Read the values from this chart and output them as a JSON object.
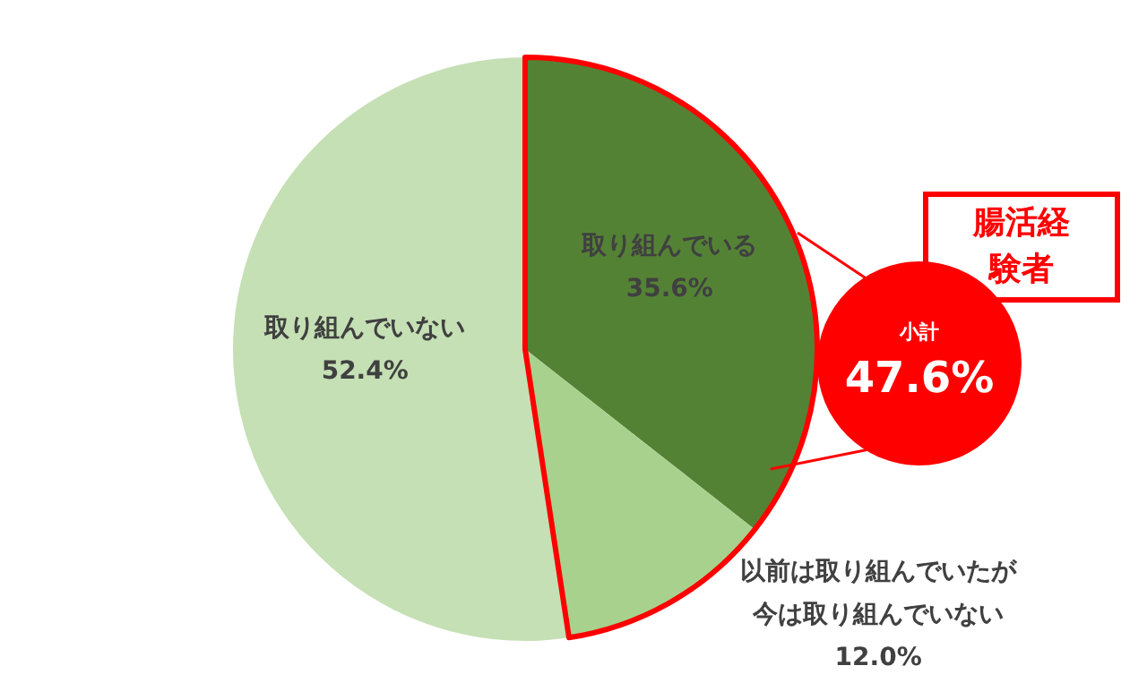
{
  "chart_data": {
    "type": "pie",
    "categories": [
      "取り組んでいる",
      "以前は取り組んでいたが今は取り組んでいない",
      "取り組んでいない"
    ],
    "values": [
      35.6,
      12.0,
      52.4
    ],
    "colors": [
      "#548235",
      "#a9d18e",
      "#c5e0b4"
    ],
    "value_labels": [
      "35.6%",
      "12.0%",
      "52.4%"
    ],
    "annotations": [
      "腸活経験者",
      "小計",
      "47.6%"
    ],
    "legend": false
  }
}
